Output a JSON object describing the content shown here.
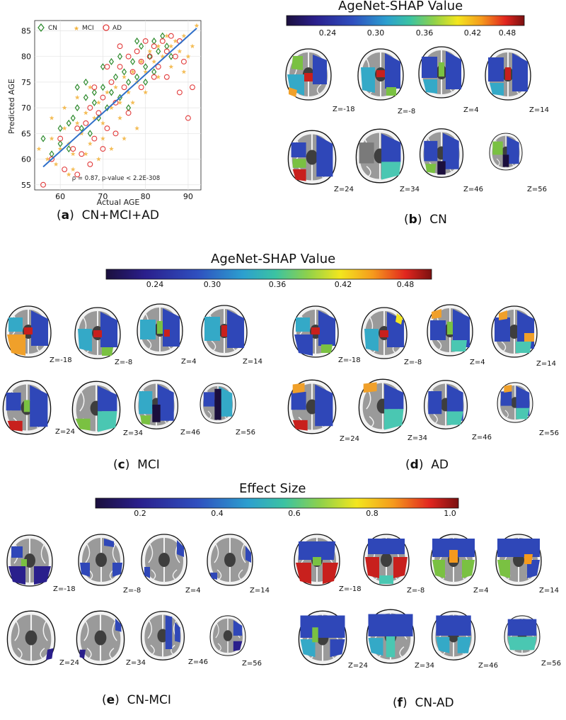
{
  "panels": {
    "a": {
      "letter": "a",
      "caption": "CN+MCI+AD"
    },
    "b": {
      "letter": "b",
      "caption": "CN"
    },
    "c": {
      "letter": "c",
      "caption": "MCI"
    },
    "d": {
      "letter": "d",
      "caption": "AD"
    },
    "e": {
      "letter": "e",
      "caption": "CN-MCI"
    },
    "f": {
      "letter": "f",
      "caption": "CN-AD"
    }
  },
  "colorbars": {
    "shap_top": {
      "title": "AgeNet-SHAP Value",
      "ticks": [
        "0.24",
        "0.30",
        "0.36",
        "0.42",
        "0.48"
      ]
    },
    "shap_mid": {
      "title": "AgeNet-SHAP Value",
      "ticks": [
        "0.24",
        "0.30",
        "0.36",
        "0.42",
        "0.48"
      ]
    },
    "effect": {
      "title": "Effect Size",
      "ticks": [
        "0.2",
        "0.4",
        "0.6",
        "0.8",
        "1.0"
      ]
    }
  },
  "slice_labels": [
    "Z=-18",
    "Z=-8",
    "Z=4",
    "Z=14",
    "Z=24",
    "Z=34",
    "Z=46",
    "Z=56"
  ],
  "colors": {
    "cn": "#2e8b2e",
    "mci": "#f2b13a",
    "ad": "#e23b3b",
    "fit": "#2f6fc9"
  },
  "chart_data": {
    "type": "scatter",
    "title": "",
    "xlabel": "Actual AGE",
    "ylabel": "Predicted AGE",
    "xlim": [
      54,
      93
    ],
    "ylim": [
      54,
      87
    ],
    "xticks": [
      60,
      70,
      80,
      90
    ],
    "yticks": [
      55,
      60,
      65,
      70,
      75,
      80,
      85
    ],
    "legend": [
      "CN",
      "MCI",
      "AD"
    ],
    "legend_position": "top-left",
    "annotation": "ρ = 0.87, p-value < 2.2E-308",
    "fit_line": {
      "x": [
        56,
        92
      ],
      "y": [
        58.5,
        85.5
      ]
    },
    "series": [
      {
        "name": "CN",
        "marker": "diamond",
        "points": [
          [
            56,
            64
          ],
          [
            58,
            61
          ],
          [
            60,
            66
          ],
          [
            62,
            62
          ],
          [
            63,
            68
          ],
          [
            64,
            70
          ],
          [
            65,
            66
          ],
          [
            66,
            72
          ],
          [
            67,
            65
          ],
          [
            68,
            71
          ],
          [
            69,
            68
          ],
          [
            70,
            74
          ],
          [
            71,
            70
          ],
          [
            72,
            73
          ],
          [
            73,
            76
          ],
          [
            74,
            72
          ],
          [
            75,
            77
          ],
          [
            76,
            75
          ],
          [
            77,
            79
          ],
          [
            78,
            76
          ],
          [
            79,
            82
          ],
          [
            80,
            78
          ],
          [
            81,
            80
          ],
          [
            82,
            83
          ],
          [
            83,
            81
          ],
          [
            84,
            84
          ],
          [
            85,
            82
          ],
          [
            86,
            80
          ],
          [
            78,
            83
          ],
          [
            74,
            80
          ],
          [
            70,
            78
          ],
          [
            66,
            75
          ],
          [
            64,
            74
          ],
          [
            72,
            79
          ],
          [
            76,
            70
          ],
          [
            68,
            73
          ],
          [
            80,
            75
          ],
          [
            82,
            77
          ],
          [
            62,
            67
          ],
          [
            60,
            63
          ]
        ]
      },
      {
        "name": "MCI",
        "marker": "star",
        "points": [
          [
            55,
            62
          ],
          [
            57,
            60
          ],
          [
            58,
            64
          ],
          [
            59,
            59
          ],
          [
            60,
            62
          ],
          [
            61,
            66
          ],
          [
            62,
            63
          ],
          [
            63,
            61
          ],
          [
            64,
            67
          ],
          [
            65,
            65
          ],
          [
            66,
            69
          ],
          [
            67,
            63
          ],
          [
            68,
            68
          ],
          [
            69,
            71
          ],
          [
            70,
            67
          ],
          [
            71,
            73
          ],
          [
            72,
            70
          ],
          [
            73,
            74
          ],
          [
            74,
            71
          ],
          [
            75,
            76
          ],
          [
            76,
            73
          ],
          [
            77,
            77
          ],
          [
            78,
            75
          ],
          [
            79,
            79
          ],
          [
            80,
            77
          ],
          [
            81,
            81
          ],
          [
            82,
            79
          ],
          [
            83,
            82
          ],
          [
            84,
            80
          ],
          [
            85,
            84
          ],
          [
            86,
            82
          ],
          [
            87,
            83
          ],
          [
            88,
            81
          ],
          [
            89,
            84
          ],
          [
            90,
            80
          ],
          [
            91,
            82
          ],
          [
            92,
            86
          ],
          [
            63,
            58
          ],
          [
            66,
            61
          ],
          [
            70,
            64
          ],
          [
            72,
            62
          ],
          [
            58,
            68
          ],
          [
            61,
            70
          ],
          [
            64,
            72
          ],
          [
            67,
            74
          ],
          [
            74,
            68
          ],
          [
            77,
            71
          ],
          [
            80,
            73
          ],
          [
            83,
            76
          ],
          [
            86,
            78
          ],
          [
            89,
            77
          ],
          [
            75,
            64
          ],
          [
            78,
            66
          ],
          [
            62,
            57
          ],
          [
            69,
            60
          ]
        ]
      },
      {
        "name": "AD",
        "marker": "circle",
        "points": [
          [
            56,
            55
          ],
          [
            58,
            60
          ],
          [
            60,
            64
          ],
          [
            61,
            58
          ],
          [
            63,
            62
          ],
          [
            64,
            66
          ],
          [
            65,
            61
          ],
          [
            66,
            67
          ],
          [
            67,
            70
          ],
          [
            68,
            64
          ],
          [
            69,
            69
          ],
          [
            70,
            72
          ],
          [
            71,
            66
          ],
          [
            72,
            75
          ],
          [
            73,
            71
          ],
          [
            74,
            78
          ],
          [
            75,
            74
          ],
          [
            76,
            80
          ],
          [
            77,
            77
          ],
          [
            78,
            81
          ],
          [
            79,
            79
          ],
          [
            80,
            83
          ],
          [
            81,
            80
          ],
          [
            82,
            82
          ],
          [
            83,
            78
          ],
          [
            84,
            83
          ],
          [
            85,
            81
          ],
          [
            86,
            84
          ],
          [
            87,
            80
          ],
          [
            88,
            83
          ],
          [
            89,
            79
          ],
          [
            90,
            68
          ],
          [
            91,
            74
          ],
          [
            88,
            73
          ],
          [
            85,
            76
          ],
          [
            82,
            76
          ],
          [
            79,
            74
          ],
          [
            76,
            69
          ],
          [
            73,
            65
          ],
          [
            70,
            62
          ],
          [
            67,
            59
          ],
          [
            64,
            57
          ],
          [
            74,
            82
          ],
          [
            71,
            78
          ],
          [
            68,
            74
          ]
        ]
      }
    ]
  }
}
